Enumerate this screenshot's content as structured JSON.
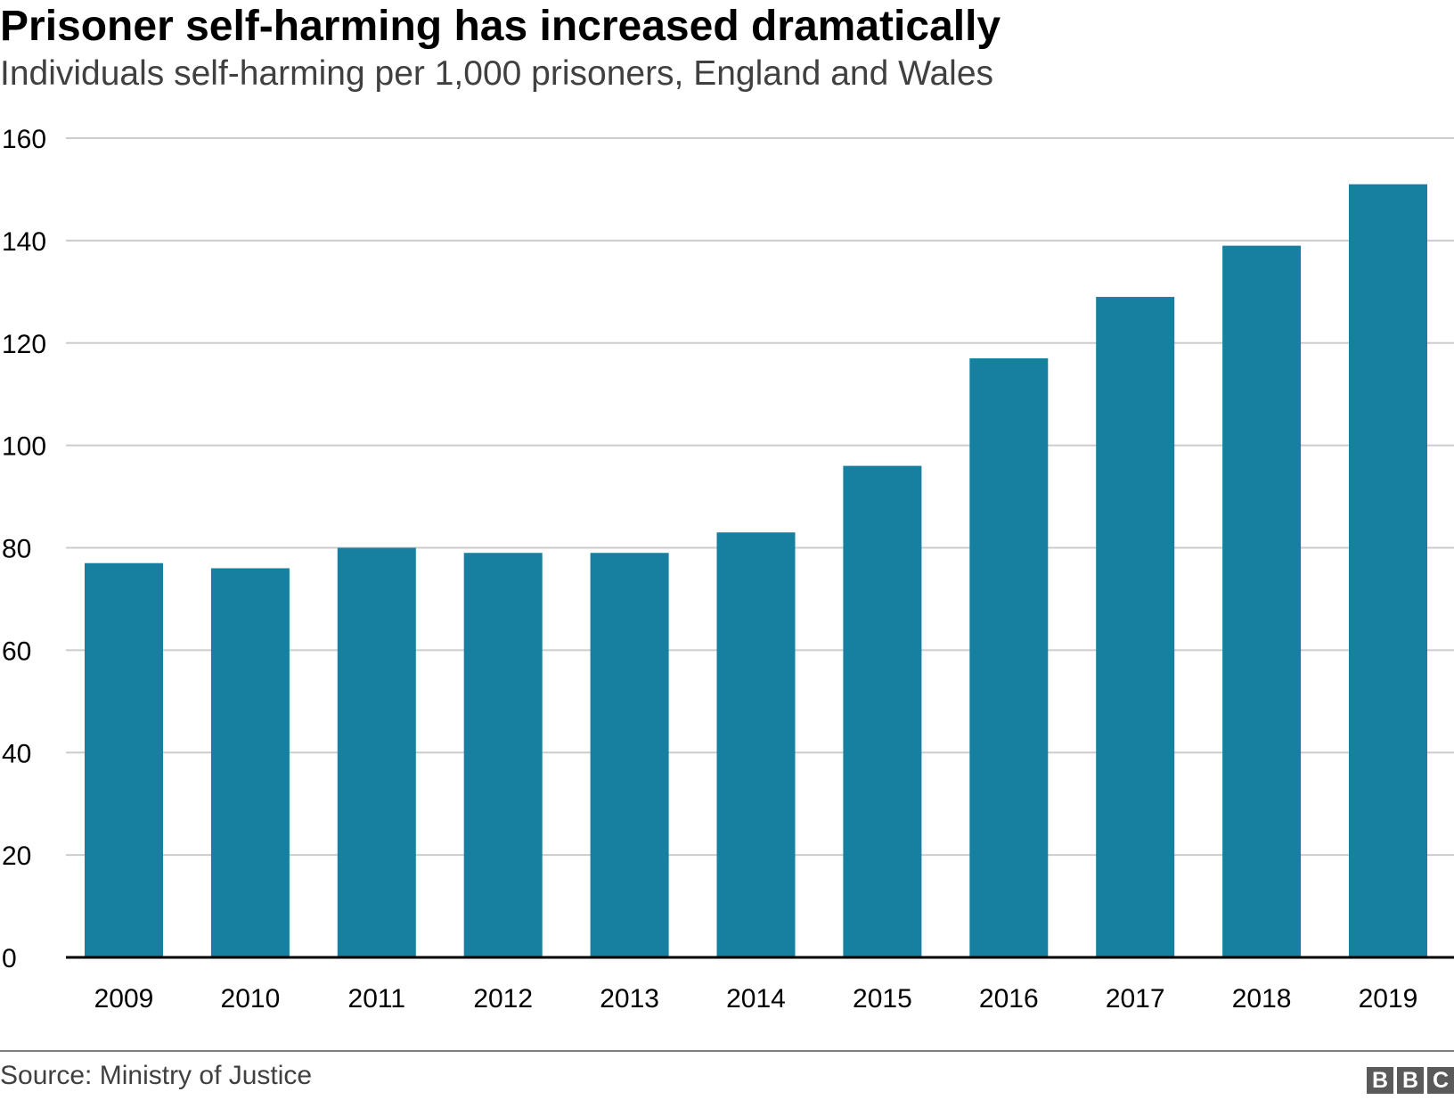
{
  "chart_data": {
    "type": "bar",
    "title": "Prisoner self-harming has increased dramatically",
    "subtitle": "Individuals self-harming per 1,000 prisoners, England and Wales",
    "categories": [
      "2009",
      "2010",
      "2011",
      "2012",
      "2013",
      "2014",
      "2015",
      "2016",
      "2017",
      "2018",
      "2019"
    ],
    "values": [
      77,
      76,
      80,
      79,
      79,
      83,
      96,
      117,
      129,
      139,
      151
    ],
    "xlabel": "",
    "ylabel": "",
    "ylim": [
      0,
      160
    ],
    "yticks": [
      "0",
      "20",
      "40",
      "60",
      "80",
      "100",
      "120",
      "140",
      "160"
    ],
    "grid": true,
    "bar_color": "#1780a1",
    "grid_color": "#cccccc",
    "axis_color": "#000000"
  },
  "footer": {
    "source": "Source: Ministry of Justice",
    "logo_letters": [
      "B",
      "B",
      "C"
    ]
  }
}
